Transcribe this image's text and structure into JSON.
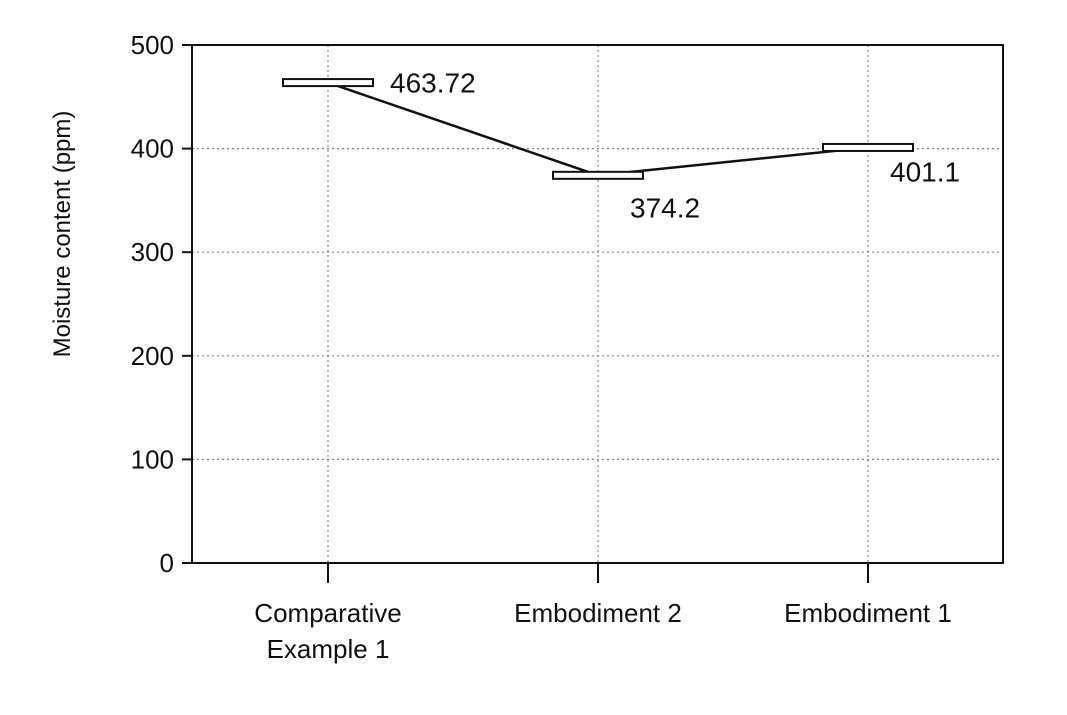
{
  "chart_data": {
    "type": "line",
    "title": "",
    "xlabel": "",
    "ylabel": "Moisture content (ppm)",
    "ylim": [
      0,
      500
    ],
    "yticks": [
      0,
      100,
      200,
      300,
      400,
      500
    ],
    "categories": [
      [
        "Comparative",
        "Example 1"
      ],
      [
        "Embodiment 2"
      ],
      [
        "Embodiment 1"
      ]
    ],
    "values": [
      463.72,
      374.2,
      401.1
    ],
    "data_labels": [
      "463.72",
      "374.2",
      "401.1"
    ],
    "grid": true,
    "grid_style": "dotted",
    "marker": "horizontal-bar",
    "colors": {
      "line": "#111111",
      "grid": "#888888",
      "axis": "#111111"
    }
  }
}
